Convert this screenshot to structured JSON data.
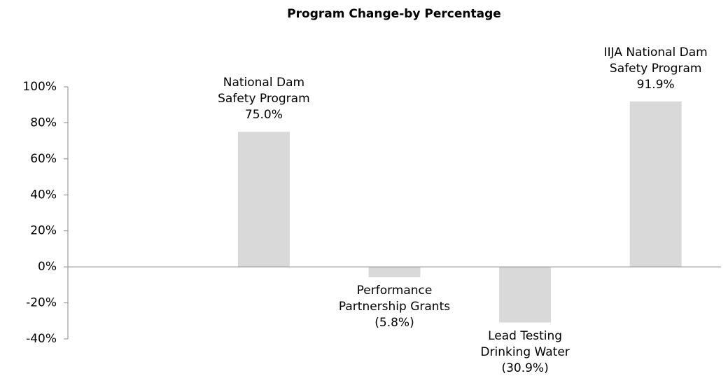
{
  "chart_data": {
    "type": "bar",
    "title": "Program Change-by Percentage",
    "categories": [
      null,
      "National Dam Safety Program",
      "Performance Partnership Grants",
      "Lead Testing Drinking Water",
      "IIJA National Dam Safety Program"
    ],
    "values": [
      null,
      75.0,
      -5.8,
      -30.9,
      91.9
    ],
    "value_labels": [
      null,
      "75.0%",
      "(5.8%)",
      "(30.9%)",
      "91.9%"
    ],
    "color": "#d9d9d9",
    "ylim": [
      -40,
      100
    ],
    "yticks": [
      {
        "value": -40,
        "label": "-40%"
      },
      {
        "value": -20,
        "label": "-20%"
      },
      {
        "value": 0,
        "label": "0%"
      },
      {
        "value": 20,
        "label": "20%"
      },
      {
        "value": 40,
        "label": "40%"
      },
      {
        "value": 60,
        "label": "60%"
      },
      {
        "value": 80,
        "label": "80%"
      },
      {
        "value": 100,
        "label": "100%"
      }
    ]
  }
}
